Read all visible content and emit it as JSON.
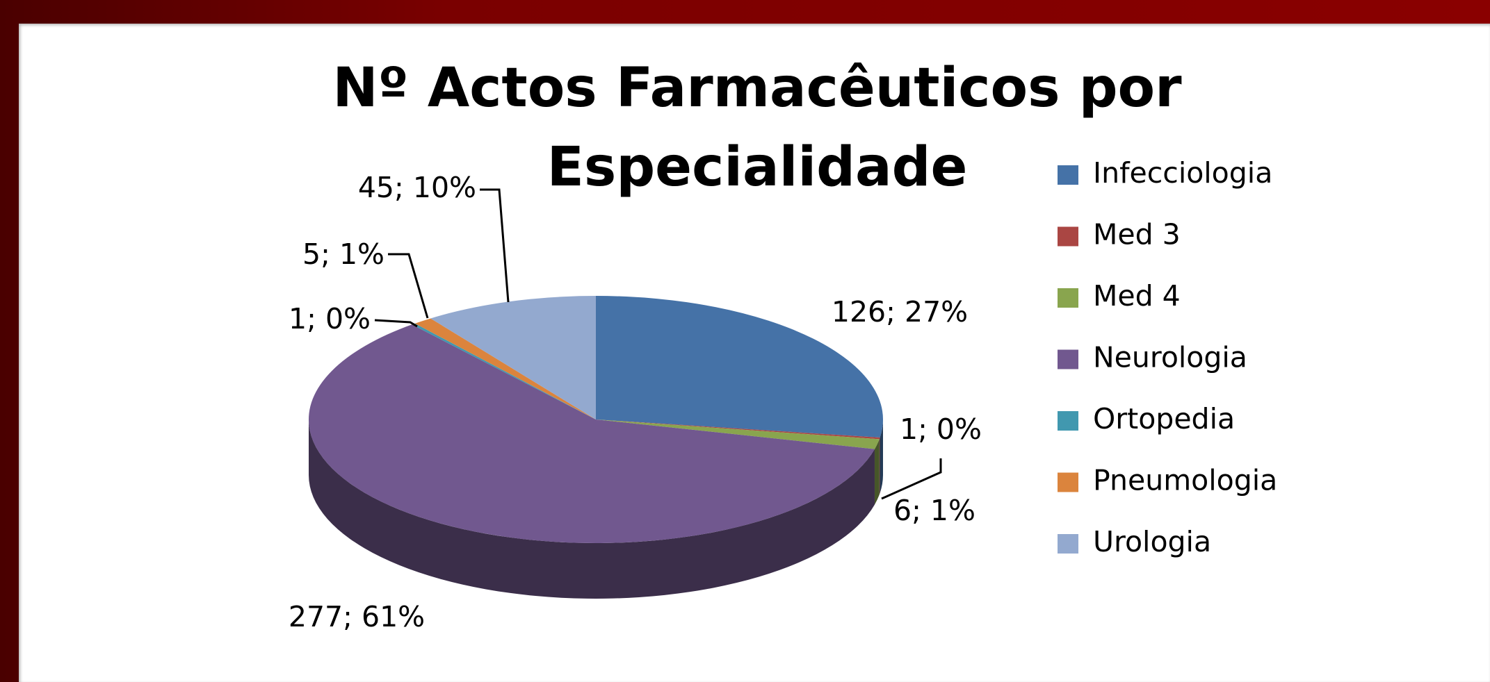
{
  "chart_data": {
    "type": "pie",
    "title": "Nº Actos Farmacêuticos por Especialidade",
    "categories": [
      "Infecciologia",
      "Med 3",
      "Med 4",
      "Neurologia",
      "Ortopedia",
      "Pneumologia",
      "Urologia"
    ],
    "values": [
      126,
      1,
      6,
      277,
      1,
      5,
      45
    ],
    "value_labels": [
      "126; 27%",
      "1; 0%",
      "6; 1%",
      "277; 61%",
      "1; 0%",
      "5; 1%",
      "45; 10%"
    ],
    "colors": [
      "#4572a7",
      "#aa4643",
      "#89a54e",
      "#71588f",
      "#4198af",
      "#db843d",
      "#93a9cf"
    ],
    "legend": "right"
  }
}
